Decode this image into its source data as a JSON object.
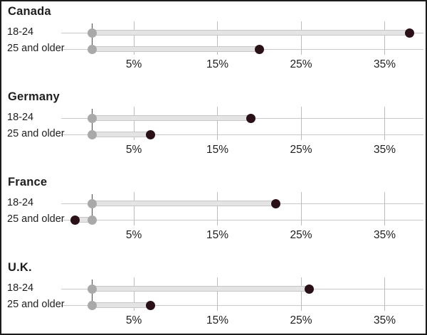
{
  "chart_data": {
    "type": "scatter",
    "subtype": "dumbbell-dot-plot",
    "title": "",
    "xlabel": "",
    "ylabel": "",
    "baseline_value": 0,
    "axis": {
      "ticks": [
        5,
        15,
        25,
        35
      ],
      "tick_labels": [
        "5%",
        "15%",
        "25%",
        "35%"
      ],
      "xlim": [
        -3.7,
        39.8
      ],
      "grid": true
    },
    "groups": [
      {
        "title": "Canada",
        "rows": [
          {
            "label": "18-24",
            "value": 38
          },
          {
            "label": "25 and older",
            "value": 20
          }
        ]
      },
      {
        "title": "Germany",
        "rows": [
          {
            "label": "18-24",
            "value": 19
          },
          {
            "label": "25 and older",
            "value": 7
          }
        ]
      },
      {
        "title": "France",
        "rows": [
          {
            "label": "18-24",
            "value": 22
          },
          {
            "label": "25 and older",
            "value": -2
          }
        ]
      },
      {
        "title": "U.K.",
        "rows": [
          {
            "label": "18-24",
            "value": 26
          },
          {
            "label": "25 and older",
            "value": 7
          }
        ]
      }
    ],
    "colors": {
      "value_dot": "#2a1118",
      "baseline_dot": "#a9a9a9",
      "band_fill": "#e4e4e4",
      "band_edge": "#c6c6c6",
      "row_line": "#c9c9c9",
      "gridline": "#bcbcbc",
      "zero_line": "#4a4a4a",
      "text": "#1e1e1e",
      "frame_border": "#1b1b1b",
      "background": "#ffffff"
    }
  }
}
